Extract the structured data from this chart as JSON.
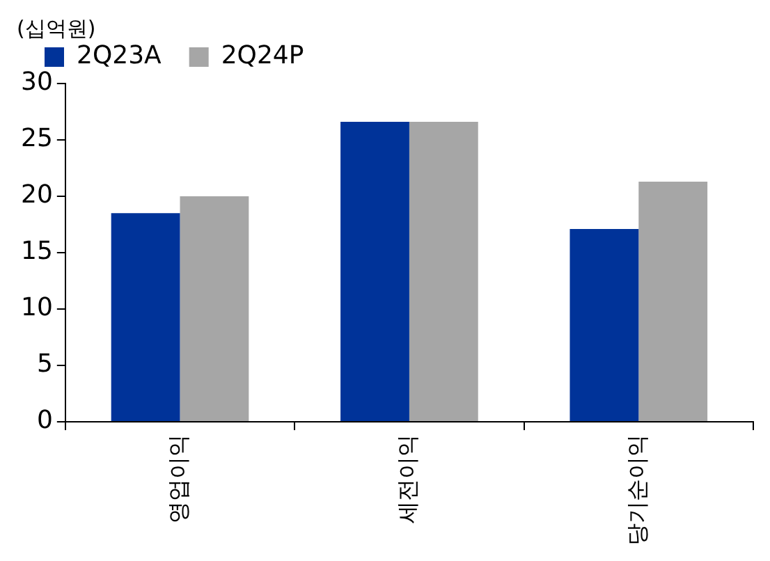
{
  "chart_data": {
    "type": "bar",
    "ylabel": "(십억원)",
    "categories": [
      "영업이익",
      "세전이익",
      "당기순이익"
    ],
    "series": [
      {
        "name": "2Q23A",
        "color": "#003399",
        "values": [
          18.5,
          26.6,
          17.1
        ]
      },
      {
        "name": "2Q24P",
        "color": "#a6a6a6",
        "values": [
          20.0,
          26.6,
          21.3
        ]
      }
    ],
    "ylim": [
      0,
      30
    ],
    "yticks": [
      0,
      5,
      10,
      15,
      20,
      25,
      30
    ],
    "grid": false,
    "legend": "top"
  }
}
